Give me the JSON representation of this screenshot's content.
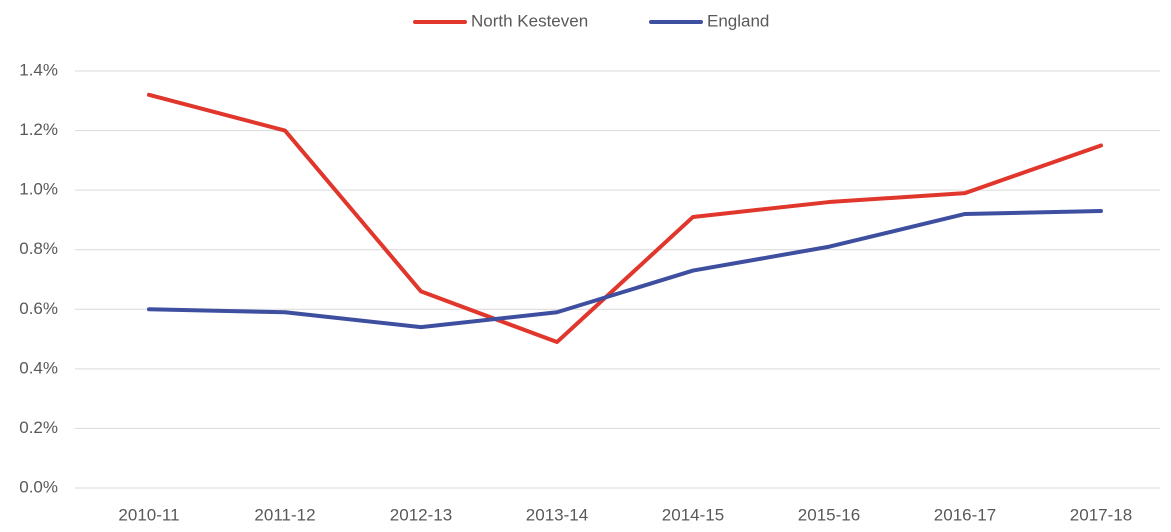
{
  "chart_data": {
    "type": "line",
    "categories": [
      "2010-11",
      "2011-12",
      "2012-13",
      "2013-14",
      "2014-15",
      "2015-16",
      "2016-17",
      "2017-18"
    ],
    "series": [
      {
        "name": "North Kesteven",
        "color": "#e0362c",
        "values": [
          1.32,
          1.2,
          0.66,
          0.49,
          0.91,
          0.96,
          0.99,
          1.15
        ]
      },
      {
        "name": "England",
        "color": "#3e4fa0",
        "values": [
          0.6,
          0.59,
          0.54,
          0.59,
          0.73,
          0.81,
          0.92,
          0.93
        ]
      }
    ],
    "ylim": [
      0,
      1.4
    ],
    "yticks": [
      {
        "value": 0,
        "label": "0.0%"
      },
      {
        "value": 0.2,
        "label": "0.2%"
      },
      {
        "value": 0.4,
        "label": "0.4%"
      },
      {
        "value": 0.6,
        "label": "0.6%"
      },
      {
        "value": 0.8,
        "label": "0.8%"
      },
      {
        "value": 1.0,
        "label": "1.0%"
      },
      {
        "value": 1.2,
        "label": "1.2%"
      },
      {
        "value": 1.4,
        "label": "1.4%"
      }
    ],
    "grid": true,
    "legend": "top"
  }
}
